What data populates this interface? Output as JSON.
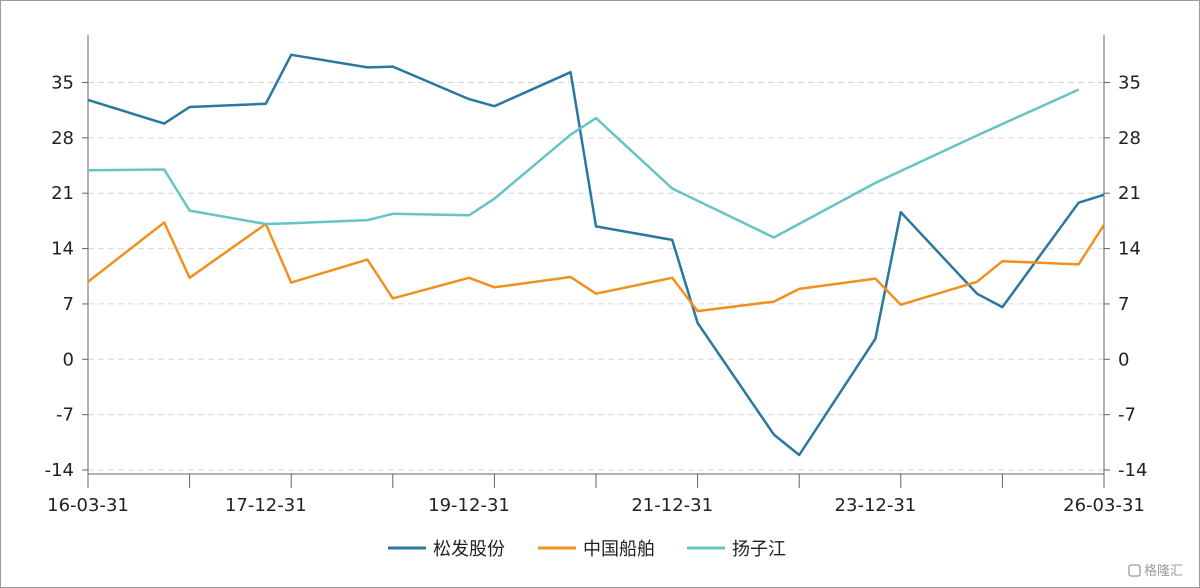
{
  "chart_data": {
    "type": "line",
    "x_tick_labels": [
      "16-03-31",
      "17-12-31",
      "19-12-31",
      "21-12-31",
      "23-12-31",
      "26-03-31"
    ],
    "y_ticks": [
      35,
      28,
      21,
      14,
      7,
      0,
      -7,
      -14
    ],
    "ylim": [
      -14.5,
      41
    ],
    "grid": true,
    "legend_position": "bottom-center",
    "x_count": 41,
    "series": [
      {
        "name": "松发股份",
        "color": "#2a77a0",
        "points": [
          [
            0,
            32.8
          ],
          [
            3,
            29.8
          ],
          [
            4,
            31.9
          ],
          [
            7,
            32.3
          ],
          [
            8,
            38.5
          ],
          [
            11,
            36.9
          ],
          [
            12,
            37.0
          ],
          [
            15,
            32.9
          ],
          [
            16,
            32.0
          ],
          [
            19,
            36.3
          ],
          [
            20,
            16.8
          ],
          [
            23,
            15.1
          ],
          [
            24,
            4.6
          ],
          [
            27,
            -9.5
          ],
          [
            28,
            -12.1
          ],
          [
            31,
            2.6
          ],
          [
            32,
            18.6
          ],
          [
            35,
            8.3
          ],
          [
            36,
            6.6
          ],
          [
            39,
            19.8
          ],
          [
            40,
            20.8
          ]
        ]
      },
      {
        "name": "中国船舶",
        "color": "#f0911f",
        "points": [
          [
            0,
            9.8
          ],
          [
            3,
            17.3
          ],
          [
            4,
            10.3
          ],
          [
            7,
            17.1
          ],
          [
            8,
            9.7
          ],
          [
            11,
            12.6
          ],
          [
            12,
            7.7
          ],
          [
            15,
            10.3
          ],
          [
            16,
            9.1
          ],
          [
            19,
            10.4
          ],
          [
            20,
            8.3
          ],
          [
            23,
            10.3
          ],
          [
            24,
            6.1
          ],
          [
            27,
            7.3
          ],
          [
            28,
            8.9
          ],
          [
            31,
            10.2
          ],
          [
            32,
            6.9
          ],
          [
            35,
            9.8
          ],
          [
            36,
            12.4
          ],
          [
            39,
            12.0
          ],
          [
            40,
            17.0
          ]
        ]
      },
      {
        "name": "扬子江",
        "color": "#66c4c4",
        "points": [
          [
            0,
            23.9
          ],
          [
            3,
            24.0
          ],
          [
            4,
            18.8
          ],
          [
            7,
            17.1
          ],
          [
            8,
            17.2
          ],
          [
            11,
            17.6
          ],
          [
            12,
            18.4
          ],
          [
            15,
            18.2
          ],
          [
            16,
            20.3
          ],
          [
            19,
            28.4
          ],
          [
            20,
            30.5
          ],
          [
            23,
            21.6
          ],
          [
            27,
            15.4
          ],
          [
            31,
            22.3
          ],
          [
            35,
            28.3
          ],
          [
            39,
            34.1
          ]
        ]
      }
    ]
  },
  "watermark": {
    "text": "格隆汇",
    "color": "#9a9a9a"
  }
}
